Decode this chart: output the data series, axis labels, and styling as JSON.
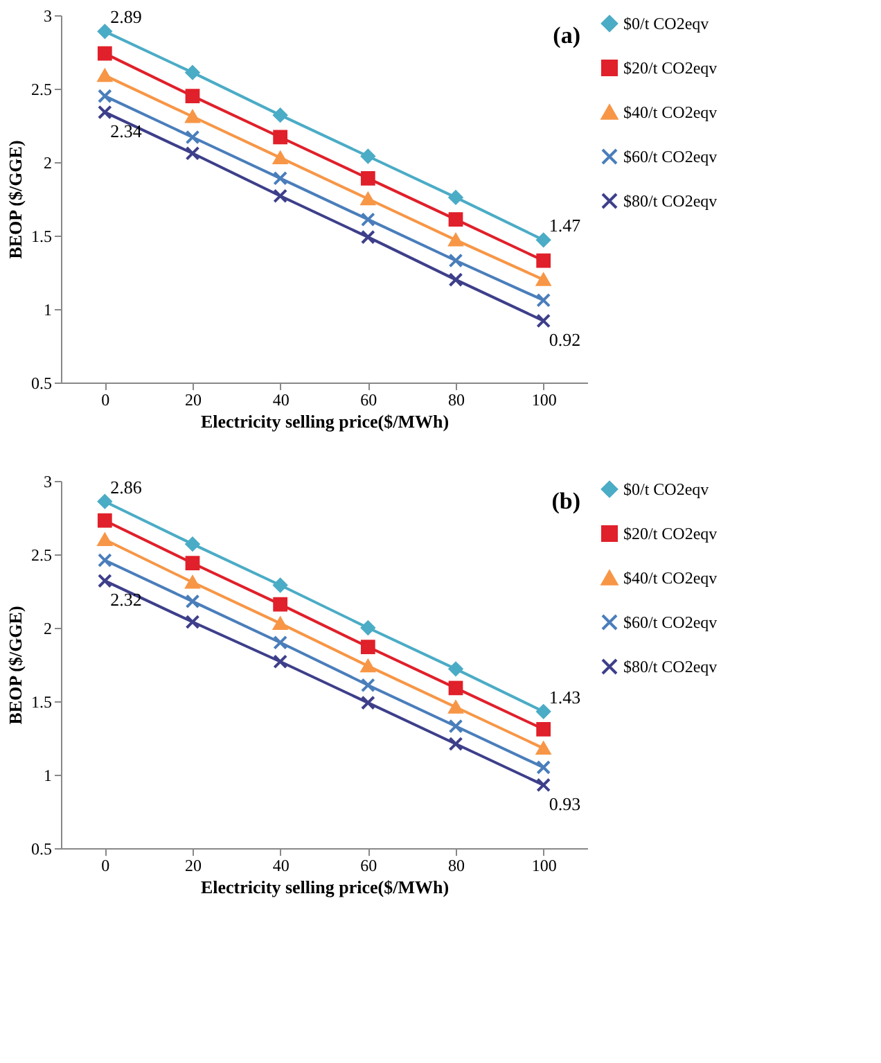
{
  "chart_data": [
    {
      "type": "line",
      "categories": [
        "0",
        "20",
        "40",
        "60",
        "80",
        "100"
      ],
      "xlabel": "Electricity selling price($/MWh)",
      "ylabel": "BEOP ($/GGE)",
      "ylim": [
        0.5,
        3
      ],
      "yticks": [
        0.5,
        1,
        1.5,
        2,
        2.5,
        3
      ],
      "legend": "right",
      "annotations": [
        "(a)"
      ],
      "series": [
        {
          "name": "$0/t CO2eqv",
          "color": "#4bacc6",
          "marker": "diamond",
          "values": [
            2.89,
            2.61,
            2.32,
            2.04,
            1.76,
            1.47
          ],
          "value_labels": [
            "2.89",
            null,
            null,
            null,
            null,
            "1.47"
          ]
        },
        {
          "name": "$20/t CO2eqv",
          "color": "#e0202a",
          "marker": "square",
          "values": [
            2.74,
            2.45,
            2.17,
            1.89,
            1.61,
            1.33
          ]
        },
        {
          "name": "$40/t CO2eqv",
          "color": "#f79646",
          "marker": "triangle",
          "values": [
            2.59,
            2.31,
            2.03,
            1.75,
            1.47,
            1.2
          ]
        },
        {
          "name": "$60/t CO2eqv",
          "color": "#4a7ebb",
          "marker": "cross",
          "values": [
            2.45,
            2.17,
            1.89,
            1.61,
            1.33,
            1.06
          ]
        },
        {
          "name": "$80/t CO2eqv",
          "color": "#3d3f8a",
          "marker": "cross",
          "values": [
            2.34,
            2.06,
            1.77,
            1.49,
            1.2,
            0.92
          ],
          "value_labels": [
            "2.34",
            null,
            null,
            null,
            null,
            "0.92"
          ]
        }
      ]
    },
    {
      "type": "line",
      "categories": [
        "0",
        "20",
        "40",
        "60",
        "80",
        "100"
      ],
      "xlabel": "Electricity selling price($/MWh)",
      "ylabel": "BEOP ($/GGE)",
      "ylim": [
        0.5,
        3
      ],
      "yticks": [
        0.5,
        1,
        1.5,
        2,
        2.5,
        3
      ],
      "legend": "right",
      "annotations": [
        "(b)"
      ],
      "series": [
        {
          "name": "$0/t CO2eqv",
          "color": "#4bacc6",
          "marker": "diamond",
          "values": [
            2.86,
            2.57,
            2.29,
            2.0,
            1.72,
            1.43
          ],
          "value_labels": [
            "2.86",
            null,
            null,
            null,
            null,
            "1.43"
          ]
        },
        {
          "name": "$20/t CO2eqv",
          "color": "#e0202a",
          "marker": "square",
          "values": [
            2.73,
            2.44,
            2.16,
            1.87,
            1.59,
            1.31
          ]
        },
        {
          "name": "$40/t CO2eqv",
          "color": "#f79646",
          "marker": "triangle",
          "values": [
            2.6,
            2.31,
            2.03,
            1.74,
            1.46,
            1.18
          ]
        },
        {
          "name": "$60/t CO2eqv",
          "color": "#4a7ebb",
          "marker": "cross",
          "values": [
            2.46,
            2.18,
            1.9,
            1.61,
            1.33,
            1.05
          ]
        },
        {
          "name": "$80/t CO2eqv",
          "color": "#3d3f8a",
          "marker": "cross",
          "values": [
            2.32,
            2.04,
            1.77,
            1.49,
            1.21,
            0.93
          ],
          "value_labels": [
            "2.32",
            null,
            null,
            null,
            null,
            "0.93"
          ]
        }
      ]
    }
  ]
}
